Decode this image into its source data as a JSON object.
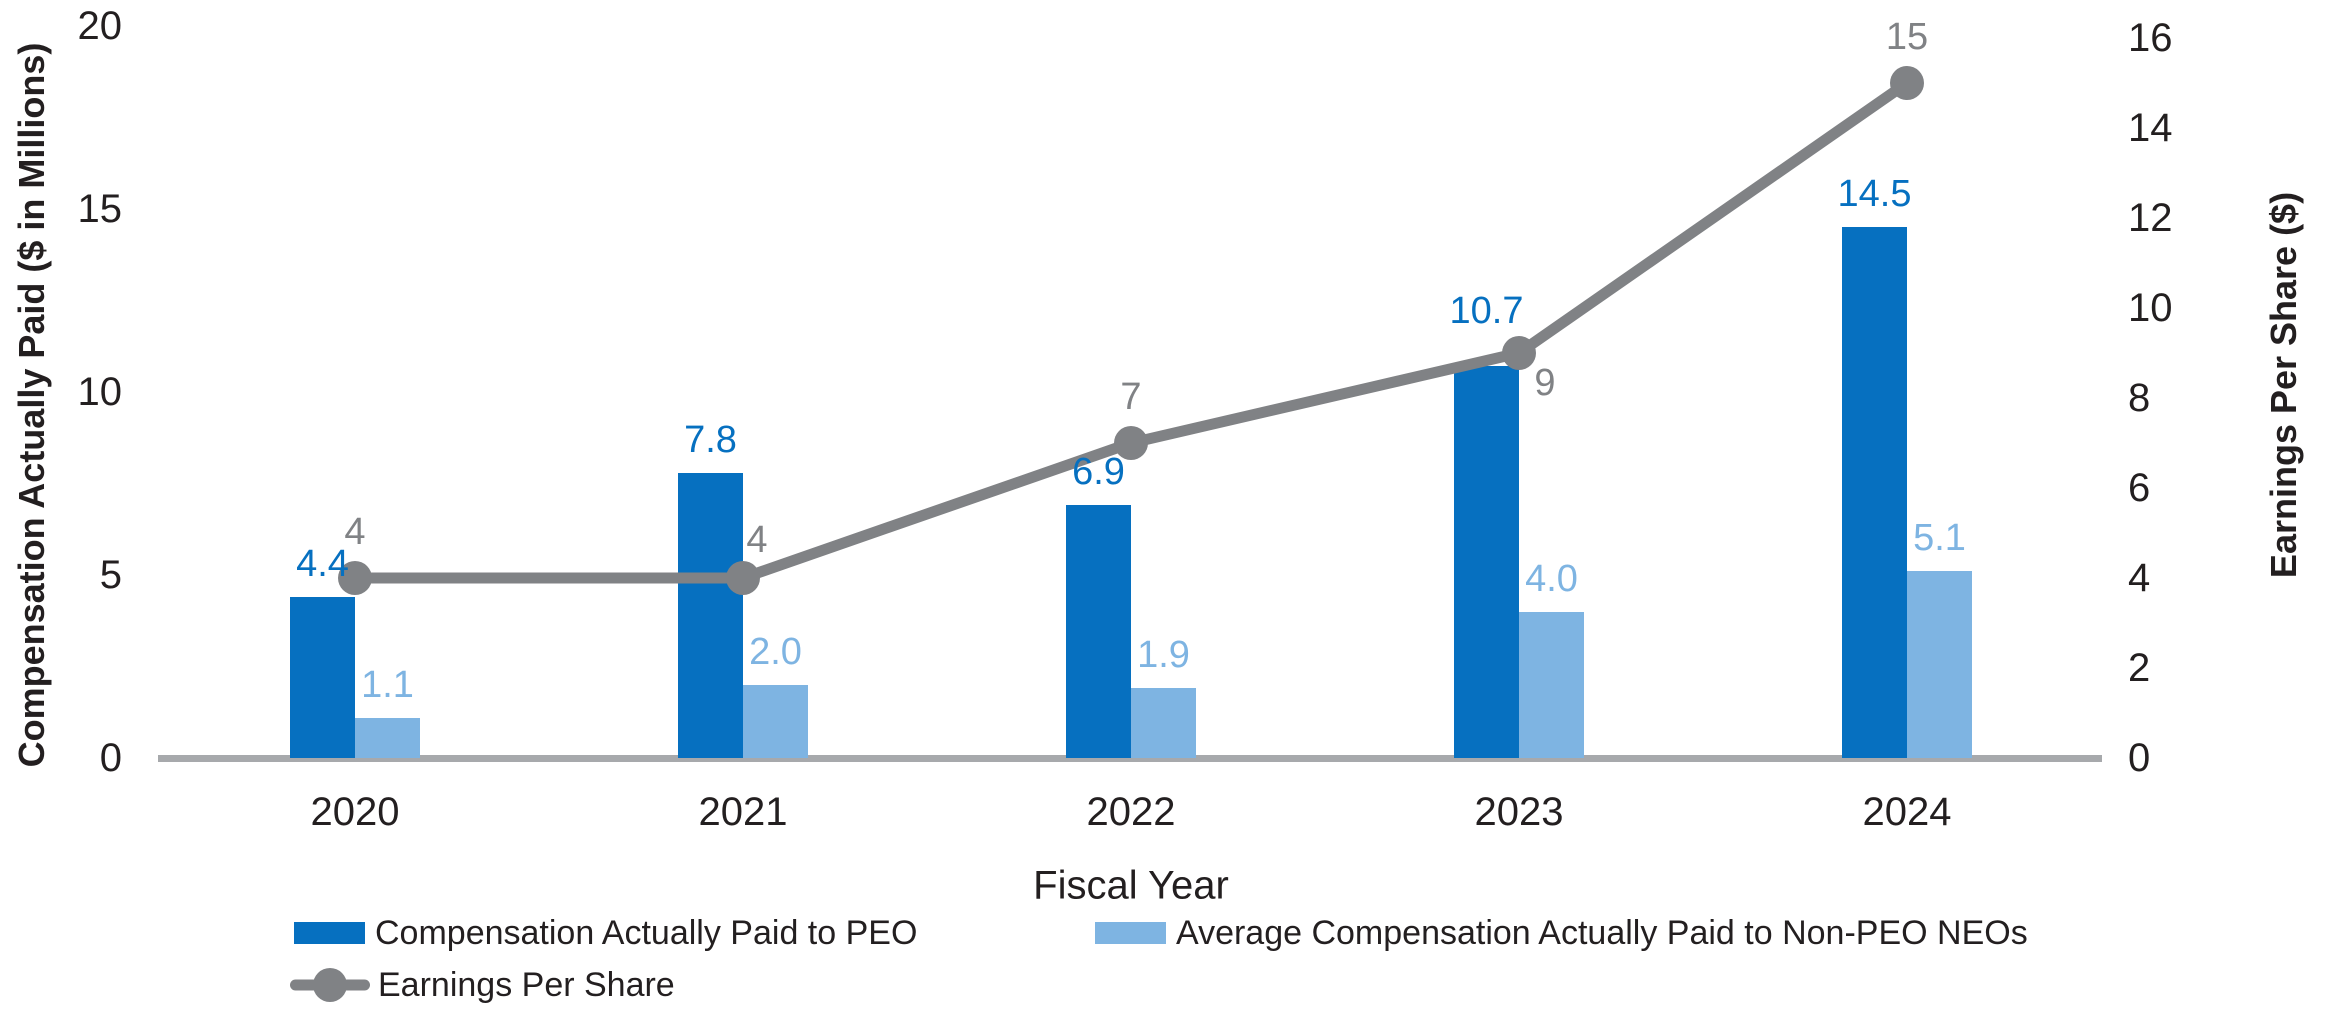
{
  "chart_data": {
    "type": "combo-bar-line",
    "categories": [
      "2020",
      "2021",
      "2022",
      "2023",
      "2024"
    ],
    "series": [
      {
        "name": "Compensation Actually Paid to PEO",
        "type": "bar",
        "axis": "left",
        "color": "#0670C0",
        "values": [
          4.4,
          7.8,
          6.9,
          10.7,
          14.5
        ],
        "labels": [
          "4.4",
          "7.8",
          "6.9",
          "10.7",
          "14.5"
        ]
      },
      {
        "name": "Average Compensation Actually Paid to Non-PEO NEOs",
        "type": "bar",
        "axis": "left",
        "color": "#7EB4E2",
        "values": [
          1.1,
          2.0,
          1.9,
          4.0,
          5.1
        ],
        "labels": [
          "1.1",
          "2.0",
          "1.9",
          "4.0",
          "5.1"
        ]
      },
      {
        "name": "Earnings Per Share",
        "type": "line",
        "axis": "right",
        "color": "#808285",
        "values": [
          4,
          4,
          7,
          9,
          15
        ],
        "labels": [
          "4",
          "4",
          "7",
          "9",
          "15"
        ]
      }
    ],
    "left_axis": {
      "title": "Compensation Actually Paid ($ in Millions)",
      "ticks": [
        0,
        5,
        10,
        15,
        20
      ],
      "range": [
        0,
        20
      ]
    },
    "right_axis": {
      "title": "Earnings Per Share ($)",
      "ticks": [
        0,
        2,
        4,
        6,
        8,
        10,
        12,
        14,
        16
      ],
      "range": [
        0,
        16
      ]
    },
    "x_axis": {
      "title": "Fiscal Year"
    },
    "legend_position": "bottom",
    "grid": false,
    "colors": {
      "peo_bar": "#0670C0",
      "neo_bar": "#7EB4E2",
      "eps_line": "#808285",
      "axis_line": "#A7A9AC",
      "text": "#231F20"
    }
  }
}
